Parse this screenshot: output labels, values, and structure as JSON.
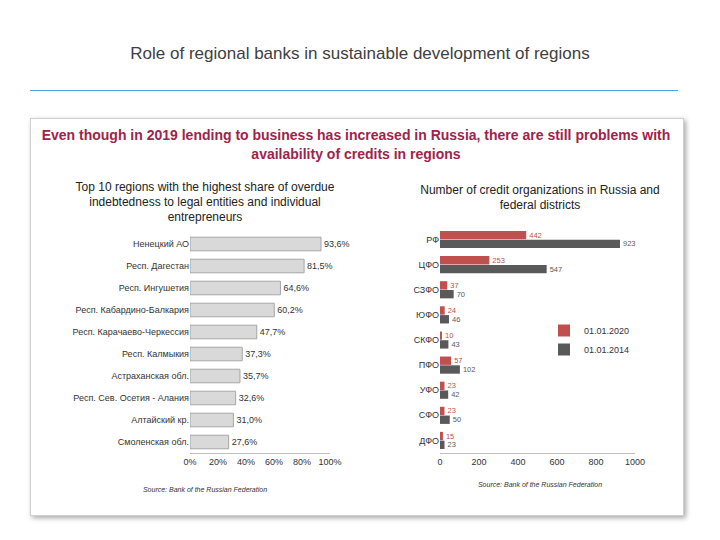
{
  "slide": {
    "title": "Role of regional banks in sustainable development of regions",
    "headline": "Even though in 2019 lending to business has increased in Russia,  there are still problems with availability of credits  in regions"
  },
  "chart_data": [
    {
      "type": "bar",
      "orientation": "horizontal",
      "title": "Top 10 regions with the highest share of overdue indebtedness to legal entities and individual entrepreneurs",
      "source": "Source: Bank of the Russian Federation",
      "categories": [
        "Ненецкий АО",
        "Респ. Дагестан",
        "Респ. Ингушетия",
        "Респ. Кабардино-Балкария",
        "Респ. Карачаево-Черкессия",
        "Респ. Калмыкия",
        "Астраханская обл.",
        "Респ. Сев. Осетия - Алания",
        "Алтайский кр.",
        "Смоленская обл."
      ],
      "values": [
        93.6,
        81.5,
        64.6,
        60.2,
        47.7,
        37.3,
        35.7,
        32.6,
        31.0,
        27.6
      ],
      "value_labels": [
        "93,6%",
        "81,5%",
        "64,6%",
        "60,2%",
        "47,7%",
        "37,3%",
        "35,7%",
        "32,6%",
        "31,0%",
        "27,6%"
      ],
      "color": "#d9d9d9",
      "data_labels": true,
      "grid": false,
      "xlim": [
        0,
        100
      ],
      "xticks": [
        {
          "value": 0,
          "label": "0%"
        },
        {
          "value": 20,
          "label": "20%"
        },
        {
          "value": 40,
          "label": "40%"
        },
        {
          "value": 60,
          "label": "60%"
        },
        {
          "value": 80,
          "label": "80%"
        },
        {
          "value": 100,
          "label": "100%"
        }
      ]
    },
    {
      "type": "bar",
      "orientation": "horizontal",
      "title": "Number of credit organizations in Russia and federal districts",
      "source": "Source: Bank of the Russian Federation",
      "categories": [
        "РФ",
        "ЦФО",
        "СЗФО",
        "ЮФО",
        "СКФО",
        "ПФО",
        "УФО",
        "СФО",
        "ДФО"
      ],
      "series": [
        {
          "name": "01.01.2020",
          "color": "#c0504d",
          "values": [
            442,
            253,
            37,
            24,
            10,
            57,
            23,
            23,
            15
          ]
        },
        {
          "name": "01.01.2014",
          "color": "#595959",
          "values": [
            923,
            547,
            70,
            46,
            43,
            102,
            42,
            50,
            23
          ]
        }
      ],
      "data_labels": true,
      "grid": false,
      "legend": "right",
      "xlim": [
        0,
        1000
      ],
      "xticks": [
        0,
        200,
        400,
        600,
        800,
        1000
      ]
    }
  ]
}
